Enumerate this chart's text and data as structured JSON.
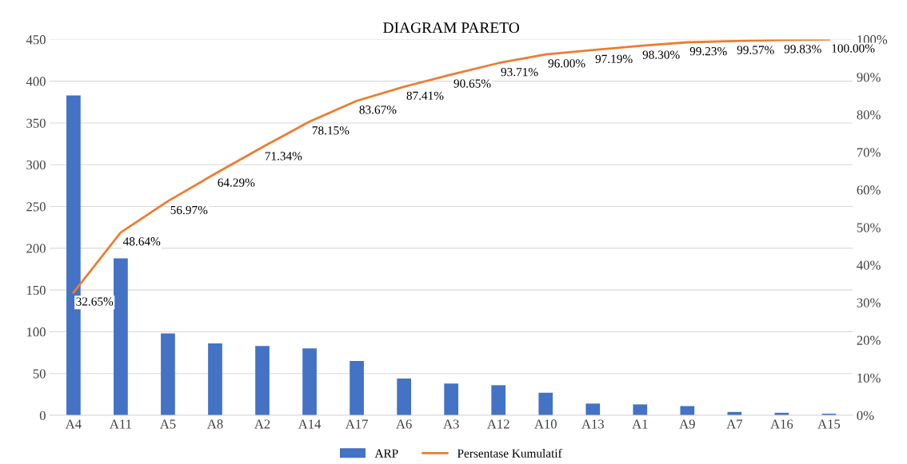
{
  "chart_data": {
    "type": "bar",
    "title": "DIAGRAM PARETO",
    "categories": [
      "A4",
      "A11",
      "A5",
      "A8",
      "A2",
      "A14",
      "A17",
      "A6",
      "A3",
      "A12",
      "A10",
      "A13",
      "A1",
      "A9",
      "A7",
      "A16",
      "A15"
    ],
    "series": [
      {
        "name": "ARP",
        "color": "#4472c4",
        "values": [
          383,
          188,
          98,
          86,
          83,
          80,
          65,
          44,
          38,
          36,
          27,
          14,
          13,
          11,
          4,
          3,
          2
        ]
      },
      {
        "name": "Persentase Kumulatif",
        "type": "line",
        "axis": "y2",
        "color": "#ed7d31",
        "marker": "none",
        "values": [
          32.65,
          48.64,
          56.97,
          64.29,
          71.34,
          78.15,
          83.67,
          87.41,
          90.65,
          93.71,
          96.0,
          97.19,
          98.3,
          99.23,
          99.57,
          99.83,
          100.0
        ],
        "value_labels": [
          "32.65%",
          "48.64%",
          "56.97%",
          "64.29%",
          "71.34%",
          "78.15%",
          "83.67%",
          "87.41%",
          "90.65%",
          "93.71%",
          "96.00%",
          "97.19%",
          "98.30%",
          "99.23%",
          "99.57%",
          "99.83%",
          "100.00%"
        ]
      }
    ],
    "ylim": [
      0,
      450
    ],
    "yticks": [
      0,
      50,
      100,
      150,
      200,
      250,
      300,
      350,
      400,
      450
    ],
    "y2lim": [
      0,
      100
    ],
    "y2ticks": [
      {
        "value": 0,
        "label": "0%"
      },
      {
        "value": 10,
        "label": "10%"
      },
      {
        "value": 20,
        "label": "20%"
      },
      {
        "value": 30,
        "label": "30%"
      },
      {
        "value": 40,
        "label": "40%"
      },
      {
        "value": 50,
        "label": "50%"
      },
      {
        "value": 60,
        "label": "60%"
      },
      {
        "value": 70,
        "label": "70%"
      },
      {
        "value": 80,
        "label": "80%"
      },
      {
        "value": 90,
        "label": "90%"
      },
      {
        "value": 100,
        "label": "100%"
      }
    ],
    "grid": "y",
    "legend": "bottom"
  }
}
